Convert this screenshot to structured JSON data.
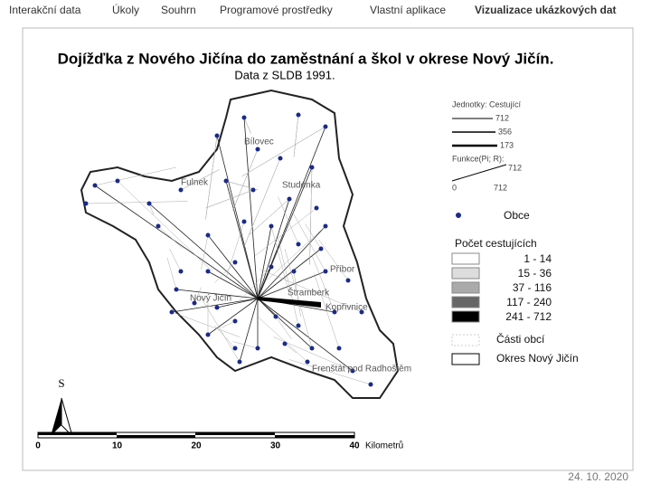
{
  "nav": {
    "items": [
      "Interakční data",
      "Úkoly",
      "Souhrn",
      "Programové prostředky",
      "Vlastní aplikace"
    ],
    "active": "Vizualizace ukázkových dat"
  },
  "map": {
    "title": "Dojížďka z Nového Jičína do zaměstnání a škol v okrese Nový Jičín.",
    "subtitle": "Data z SLDB 1991.",
    "places": [
      "Fulnek",
      "Studénka",
      "Bílovec",
      "Příbor",
      "Nový Jičín",
      "Štramberk",
      "Kopřivnice",
      "Frenštát pod Radhoštěm"
    ],
    "legend": {
      "units": "Jednotky: Cestující",
      "widths": [
        "712",
        "356",
        "173"
      ],
      "function": "Funkce(Pi; R):",
      "function_ticks": [
        "0",
        "712"
      ],
      "function_max": "712",
      "municipalities": "Obce",
      "classes_title": "Počet cestujících",
      "classes": [
        "1 - 14",
        "15 - 36",
        "37 - 116",
        "117 - 240",
        "241 - 712"
      ],
      "parts": "Části obcí",
      "district": "Okres Nový Jičín"
    },
    "north": "S",
    "scale": {
      "ticks": [
        "0",
        "10",
        "20",
        "30",
        "40"
      ],
      "unit": "Kilometrů"
    }
  },
  "footer": {
    "date": "24. 10. 2020"
  }
}
